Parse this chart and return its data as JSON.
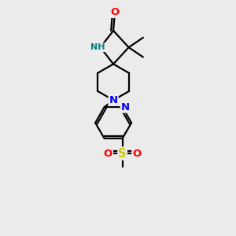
{
  "bg_color": "#ebebeb",
  "atom_colors": {
    "C": "#000000",
    "N": "#0000ff",
    "N2": "#008080",
    "O": "#ff0000",
    "S": "#cccc00",
    "H": "#000000"
  },
  "line_color": "#000000",
  "line_width": 1.6,
  "font_size_atom": 8.5,
  "fig_size": [
    3.0,
    3.0
  ],
  "dpi": 100,
  "xlim": [
    0,
    10
  ],
  "ylim": [
    0,
    10
  ]
}
